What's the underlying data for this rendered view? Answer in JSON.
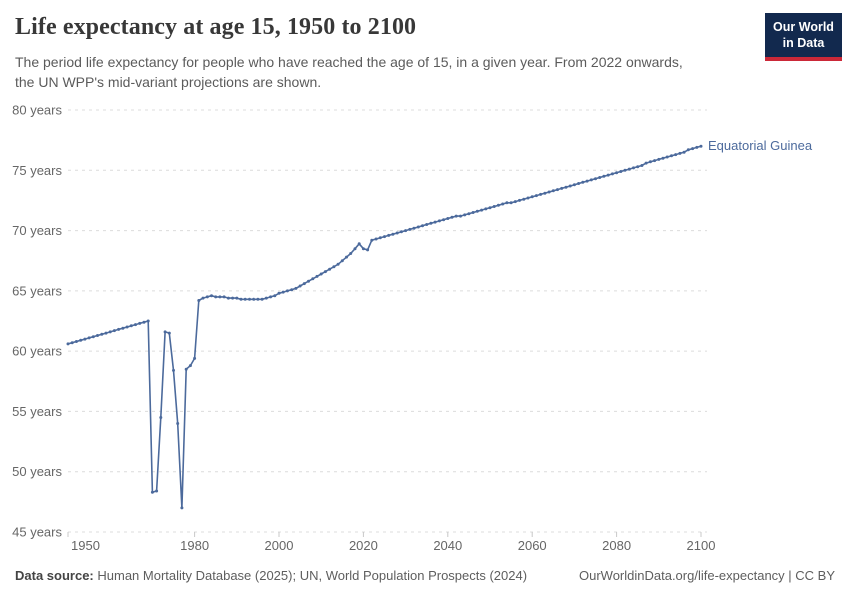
{
  "header": {
    "title": "Life expectancy at age 15, 1950 to 2100",
    "subtitle_line1": "The period life expectancy for people who have reached the age of 15, in a given year. From 2022 onwards,",
    "subtitle_line2": "the UN WPP's mid-variant projections are shown.",
    "logo_line1": "Our World",
    "logo_line2": "in Data"
  },
  "colors": {
    "line": "#4c6a9c",
    "entity_label": "#4c6a9c",
    "grid": "#dcdcdc",
    "tick": "#c8c8c8",
    "axis_text": "#666666",
    "logo_bg": "#12294e",
    "logo_stripe": "#cb2838"
  },
  "chart_data": {
    "type": "line",
    "title": "Life expectancy at age 15, 1950 to 2100",
    "entity_label": "Equatorial Guinea",
    "xlim": [
      1950,
      2100
    ],
    "ylim": [
      45,
      80
    ],
    "grid": true,
    "legend_position": "end-of-line",
    "yticks": [
      {
        "value": 45,
        "label": "45 years"
      },
      {
        "value": 50,
        "label": "50 years"
      },
      {
        "value": 55,
        "label": "55 years"
      },
      {
        "value": 60,
        "label": "60 years"
      },
      {
        "value": 65,
        "label": "65 years"
      },
      {
        "value": 70,
        "label": "70 years"
      },
      {
        "value": 75,
        "label": "75 years"
      },
      {
        "value": 80,
        "label": "80 years"
      }
    ],
    "xticks": [
      1950,
      1980,
      2000,
      2020,
      2040,
      2060,
      2080,
      2100
    ],
    "points": [
      [
        1950,
        60.6
      ],
      [
        1951,
        60.7
      ],
      [
        1952,
        60.8
      ],
      [
        1953,
        60.9
      ],
      [
        1954,
        61.0
      ],
      [
        1955,
        61.1
      ],
      [
        1956,
        61.2
      ],
      [
        1957,
        61.3
      ],
      [
        1958,
        61.4
      ],
      [
        1959,
        61.5
      ],
      [
        1960,
        61.6
      ],
      [
        1961,
        61.7
      ],
      [
        1962,
        61.8
      ],
      [
        1963,
        61.9
      ],
      [
        1964,
        62.0
      ],
      [
        1965,
        62.1
      ],
      [
        1966,
        62.2
      ],
      [
        1967,
        62.3
      ],
      [
        1968,
        62.4
      ],
      [
        1969,
        62.5
      ],
      [
        1970,
        48.3
      ],
      [
        1971,
        48.4
      ],
      [
        1972,
        54.5
      ],
      [
        1973,
        61.6
      ],
      [
        1974,
        61.5
      ],
      [
        1975,
        58.4
      ],
      [
        1976,
        54.0
      ],
      [
        1977,
        47.0
      ],
      [
        1978,
        58.5
      ],
      [
        1979,
        58.8
      ],
      [
        1980,
        59.4
      ],
      [
        1981,
        64.2
      ],
      [
        1982,
        64.4
      ],
      [
        1983,
        64.5
      ],
      [
        1984,
        64.6
      ],
      [
        1985,
        64.5
      ],
      [
        1986,
        64.5
      ],
      [
        1987,
        64.5
      ],
      [
        1988,
        64.4
      ],
      [
        1989,
        64.4
      ],
      [
        1990,
        64.4
      ],
      [
        1991,
        64.3
      ],
      [
        1992,
        64.3
      ],
      [
        1993,
        64.3
      ],
      [
        1994,
        64.3
      ],
      [
        1995,
        64.3
      ],
      [
        1996,
        64.3
      ],
      [
        1997,
        64.4
      ],
      [
        1998,
        64.5
      ],
      [
        1999,
        64.6
      ],
      [
        2000,
        64.8
      ],
      [
        2001,
        64.9
      ],
      [
        2002,
        65.0
      ],
      [
        2003,
        65.1
      ],
      [
        2004,
        65.2
      ],
      [
        2005,
        65.4
      ],
      [
        2006,
        65.6
      ],
      [
        2007,
        65.8
      ],
      [
        2008,
        66.0
      ],
      [
        2009,
        66.2
      ],
      [
        2010,
        66.4
      ],
      [
        2011,
        66.6
      ],
      [
        2012,
        66.8
      ],
      [
        2013,
        67.0
      ],
      [
        2014,
        67.2
      ],
      [
        2015,
        67.5
      ],
      [
        2016,
        67.8
      ],
      [
        2017,
        68.1
      ],
      [
        2018,
        68.5
      ],
      [
        2019,
        68.9
      ],
      [
        2020,
        68.5
      ],
      [
        2021,
        68.4
      ],
      [
        2022,
        69.2
      ],
      [
        2023,
        69.3
      ],
      [
        2024,
        69.4
      ],
      [
        2025,
        69.5
      ],
      [
        2026,
        69.6
      ],
      [
        2027,
        69.7
      ],
      [
        2028,
        69.8
      ],
      [
        2029,
        69.9
      ],
      [
        2030,
        70.0
      ],
      [
        2031,
        70.1
      ],
      [
        2032,
        70.2
      ],
      [
        2033,
        70.3
      ],
      [
        2034,
        70.4
      ],
      [
        2035,
        70.5
      ],
      [
        2036,
        70.6
      ],
      [
        2037,
        70.7
      ],
      [
        2038,
        70.8
      ],
      [
        2039,
        70.9
      ],
      [
        2040,
        71.0
      ],
      [
        2041,
        71.1
      ],
      [
        2042,
        71.2
      ],
      [
        2043,
        71.2
      ],
      [
        2044,
        71.3
      ],
      [
        2045,
        71.4
      ],
      [
        2046,
        71.5
      ],
      [
        2047,
        71.6
      ],
      [
        2048,
        71.7
      ],
      [
        2049,
        71.8
      ],
      [
        2050,
        71.9
      ],
      [
        2051,
        72.0
      ],
      [
        2052,
        72.1
      ],
      [
        2053,
        72.2
      ],
      [
        2054,
        72.3
      ],
      [
        2055,
        72.3
      ],
      [
        2056,
        72.4
      ],
      [
        2057,
        72.5
      ],
      [
        2058,
        72.6
      ],
      [
        2059,
        72.7
      ],
      [
        2060,
        72.8
      ],
      [
        2061,
        72.9
      ],
      [
        2062,
        73.0
      ],
      [
        2063,
        73.1
      ],
      [
        2064,
        73.2
      ],
      [
        2065,
        73.3
      ],
      [
        2066,
        73.4
      ],
      [
        2067,
        73.5
      ],
      [
        2068,
        73.6
      ],
      [
        2069,
        73.7
      ],
      [
        2070,
        73.8
      ],
      [
        2071,
        73.9
      ],
      [
        2072,
        74.0
      ],
      [
        2073,
        74.1
      ],
      [
        2074,
        74.2
      ],
      [
        2075,
        74.3
      ],
      [
        2076,
        74.4
      ],
      [
        2077,
        74.5
      ],
      [
        2078,
        74.6
      ],
      [
        2079,
        74.7
      ],
      [
        2080,
        74.8
      ],
      [
        2081,
        74.9
      ],
      [
        2082,
        75.0
      ],
      [
        2083,
        75.1
      ],
      [
        2084,
        75.2
      ],
      [
        2085,
        75.3
      ],
      [
        2086,
        75.4
      ],
      [
        2087,
        75.6
      ],
      [
        2088,
        75.7
      ],
      [
        2089,
        75.8
      ],
      [
        2090,
        75.9
      ],
      [
        2091,
        76.0
      ],
      [
        2092,
        76.1
      ],
      [
        2093,
        76.2
      ],
      [
        2094,
        76.3
      ],
      [
        2095,
        76.4
      ],
      [
        2096,
        76.5
      ],
      [
        2097,
        76.7
      ],
      [
        2098,
        76.8
      ],
      [
        2099,
        76.9
      ],
      [
        2100,
        77.0
      ]
    ]
  },
  "footer": {
    "source_label": "Data source:",
    "source_value": "Human Mortality Database (2025); UN, World Population Prospects (2024)",
    "link_text": "OurWorldinData.org/life-expectancy | CC BY"
  }
}
